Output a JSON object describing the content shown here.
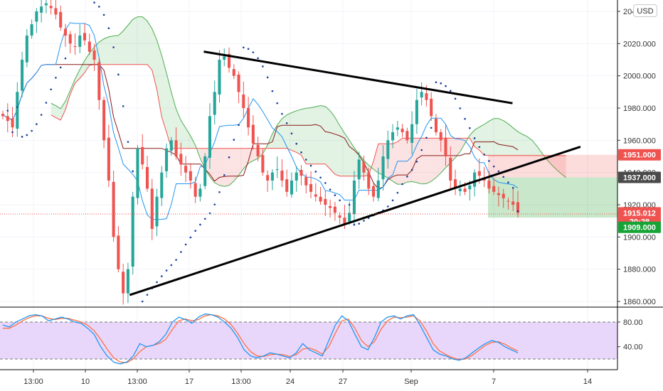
{
  "currency_button": "USD",
  "price_axis": {
    "labels": [
      "2040.000",
      "2020.000",
      "2000.000",
      "1980.000",
      "1960.000",
      "1940.000",
      "1920.000",
      "1900.000",
      "1880.000",
      "1860.000"
    ],
    "values": [
      2040,
      2020,
      2000,
      1980,
      1960,
      1940,
      1920,
      1900,
      1880,
      1860
    ]
  },
  "osc_axis": {
    "labels": [
      "80.00",
      "40.00"
    ],
    "values": [
      80,
      40
    ]
  },
  "time_axis": {
    "labels": [
      "13:00",
      "10",
      "13:00",
      "17",
      "13:00",
      "24",
      "27",
      "Sep",
      "7",
      "14"
    ]
  },
  "price_tags": [
    {
      "label": "1951.000",
      "value": 1951,
      "color": "#ef5350"
    },
    {
      "label": "1937.000",
      "value": 1937,
      "color": "#4a4a4a"
    },
    {
      "label": "1915.012",
      "value": 1915,
      "color": "#ef5350"
    },
    {
      "label": "20:28",
      "value": 1909.6,
      "color": "#ef5350"
    },
    {
      "label": "1909.000",
      "value": 1906,
      "color": "#17a336"
    }
  ],
  "colors": {
    "up": "#26a69a",
    "down": "#ef5350",
    "tenkan": "#2196f3",
    "kijun": "#8b1a1a",
    "span_a": "#4caf50",
    "span_b": "#ef5350",
    "psar": "#1a3d99",
    "trendline": "#000000",
    "stoch_k": "#2196f3",
    "stoch_d": "#ff7043",
    "stoch_band": "#e1c9f9"
  },
  "chart_data": {
    "type": "candlestick",
    "symbol_currency": "USD",
    "ylim": [
      1855,
      2045
    ],
    "last_price": 1915.012,
    "stop_loss": 1951,
    "entry": 1937,
    "take_profit": 1909,
    "close_path": [
      1975,
      1972,
      1968,
      1990,
      2010,
      2025,
      2032,
      2040,
      2043,
      2045,
      2042,
      2038,
      2030,
      2025,
      2020,
      2018,
      2025,
      2022,
      2015,
      2010,
      1985,
      1960,
      1935,
      1900,
      1880,
      1865,
      1880,
      1925,
      1955,
      1945,
      1930,
      1905,
      1925,
      1940,
      1955,
      1960,
      1950,
      1945,
      1940,
      1935,
      1925,
      1930,
      1950,
      1975,
      1990,
      2010,
      2012,
      2005,
      2000,
      1990,
      1980,
      1968,
      1958,
      1950,
      1940,
      1935,
      1940,
      1942,
      1935,
      1928,
      1935,
      1940,
      1938,
      1932,
      1928,
      1925,
      1922,
      1920,
      1918,
      1915,
      1912,
      1908,
      1915,
      1935,
      1948,
      1940,
      1930,
      1925,
      1935,
      1950,
      1960,
      1965,
      1968,
      1965,
      1960,
      1970,
      1985,
      1990,
      1985,
      1975,
      1965,
      1960,
      1950,
      1935,
      1930,
      1930,
      1928,
      1932,
      1940,
      1938,
      1935,
      1930,
      1928,
      1926,
      1924,
      1922,
      1920,
      1915
    ],
    "trendlines": [
      {
        "name": "upper",
        "from": [
          0.33,
          2015
        ],
        "to": [
          0.83,
          1983
        ]
      },
      {
        "name": "lower",
        "from": [
          0.21,
          1864
        ],
        "to": [
          0.94,
          1956
        ]
      }
    ],
    "oscillator": {
      "levels": [
        80,
        20
      ],
      "k": [
        75,
        72,
        80,
        85,
        90,
        92,
        90,
        82,
        85,
        88,
        85,
        80,
        78,
        70,
        60,
        40,
        25,
        15,
        12,
        15,
        25,
        45,
        40,
        42,
        48,
        60,
        80,
        88,
        84,
        78,
        88,
        93,
        92,
        88,
        80,
        70,
        55,
        35,
        25,
        22,
        25,
        30,
        28,
        25,
        22,
        30,
        45,
        35,
        30,
        25,
        50,
        75,
        90,
        82,
        60,
        40,
        35,
        55,
        80,
        88,
        90,
        85,
        90,
        92,
        75,
        55,
        35,
        28,
        25,
        20,
        18,
        22,
        30,
        38,
        45,
        50,
        47,
        40,
        35,
        30
      ],
      "d": [
        70,
        70,
        75,
        82,
        87,
        90,
        90,
        86,
        84,
        86,
        86,
        83,
        80,
        75,
        66,
        52,
        36,
        22,
        15,
        14,
        20,
        32,
        40,
        42,
        45,
        52,
        68,
        82,
        85,
        82,
        84,
        90,
        92,
        90,
        85,
        76,
        62,
        45,
        32,
        25,
        24,
        27,
        28,
        27,
        24,
        27,
        36,
        38,
        34,
        28,
        40,
        62,
        82,
        85,
        70,
        50,
        40,
        48,
        68,
        82,
        88,
        87,
        88,
        90,
        82,
        65,
        45,
        33,
        27,
        22,
        19,
        20,
        26,
        34,
        42,
        47,
        48,
        44,
        38,
        33
      ]
    }
  }
}
